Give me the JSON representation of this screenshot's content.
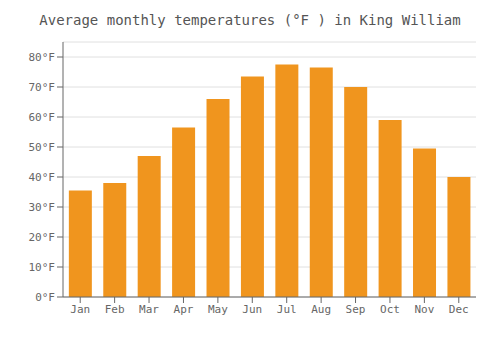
{
  "chart_data": {
    "type": "bar",
    "title": "Average monthly temperatures (°F ) in King William",
    "categories": [
      "Jan",
      "Feb",
      "Mar",
      "Apr",
      "May",
      "Jun",
      "Jul",
      "Aug",
      "Sep",
      "Oct",
      "Nov",
      "Dec"
    ],
    "values": [
      35.5,
      38,
      47,
      56.5,
      66,
      73.5,
      77.5,
      76.5,
      70,
      59,
      49.5,
      40
    ],
    "color": "#F0951E",
    "ylim": [
      0,
      85
    ],
    "yticks": [
      {
        "value": 0,
        "label": "0°F"
      },
      {
        "value": 10,
        "label": "10°F"
      },
      {
        "value": 20,
        "label": "20°F"
      },
      {
        "value": 30,
        "label": "30°F"
      },
      {
        "value": 40,
        "label": "40°F"
      },
      {
        "value": 50,
        "label": "50°F"
      },
      {
        "value": 60,
        "label": "60°F"
      },
      {
        "value": 70,
        "label": "70°F"
      },
      {
        "value": 80,
        "label": "80°F"
      }
    ],
    "grid": true
  }
}
